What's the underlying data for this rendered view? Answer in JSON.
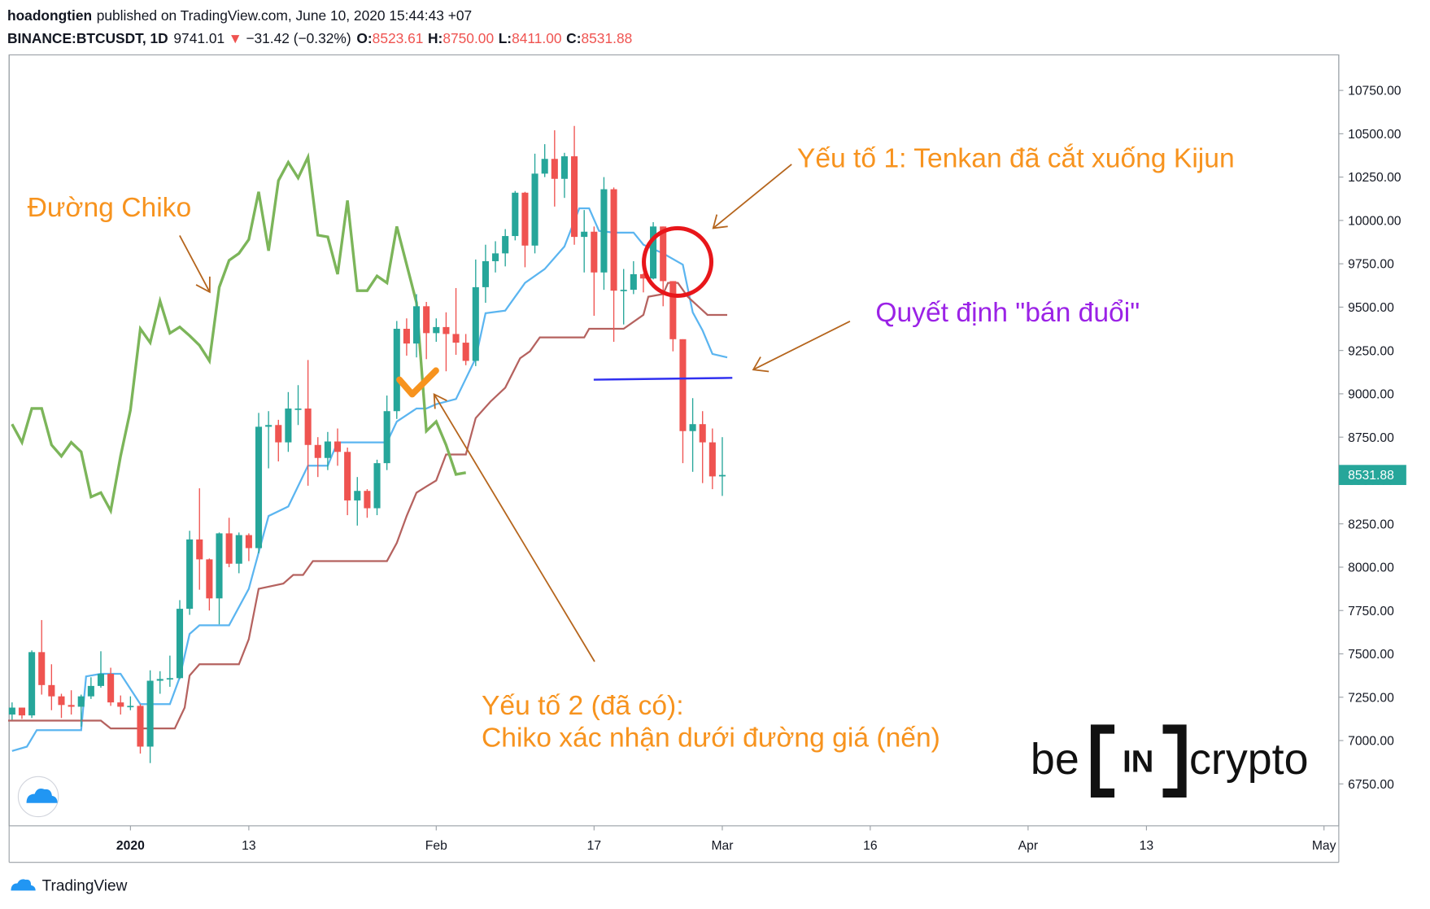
{
  "header": {
    "author": "hoadongtien",
    "published": "published on TradingView.com, June 10, 2020 15:44:43 +07",
    "symbol": "BINANCE:BTCUSDT, 1D",
    "price": "9741.01",
    "change_arrow": "▼",
    "change": "−31.42 (−0.32%)",
    "ohlc": [
      {
        "label": "O:",
        "value": "8523.61"
      },
      {
        "label": "H:",
        "value": "8750.00"
      },
      {
        "label": "L:",
        "value": "8411.00"
      },
      {
        "label": "C:",
        "value": "8531.88"
      }
    ]
  },
  "chart_data": {
    "type": "candlestick",
    "up_color": "#26a69a",
    "down_color": "#ef5350",
    "x": [
      -12,
      -11,
      -10,
      -9,
      -8,
      -7,
      -6,
      -5,
      -4,
      -3,
      -2,
      -1,
      0,
      1,
      2,
      3,
      4,
      5,
      6,
      7,
      8,
      9,
      10,
      11,
      12,
      13,
      14,
      15,
      16,
      17,
      18,
      19,
      20,
      21,
      22,
      23,
      24,
      25,
      26,
      27,
      28,
      29,
      30,
      31,
      32,
      33,
      34,
      35,
      36,
      37,
      38,
      39,
      40,
      41,
      42,
      43,
      44,
      45,
      46,
      47,
      48,
      49,
      50,
      51,
      52,
      53,
      54,
      55,
      56,
      57,
      58,
      59,
      60
    ],
    "open": [
      7150,
      7190,
      7145,
      7510,
      7320,
      7255,
      7205,
      7195,
      7255,
      7315,
      7385,
      7220,
      7195,
      7200,
      6965,
      7345,
      7355,
      7360,
      7760,
      8160,
      8045,
      7820,
      8195,
      8020,
      8185,
      8110,
      8810,
      8820,
      8720,
      8915,
      8915,
      8705,
      8630,
      8725,
      8665,
      8385,
      8440,
      8340,
      8600,
      8900,
      9375,
      9290,
      9505,
      9350,
      9385,
      9345,
      9295,
      9190,
      9615,
      9765,
      9810,
      9910,
      10160,
      9855,
      10270,
      10355,
      10240,
      10370,
      9905,
      9935,
      9700,
      10180,
      9595,
      9600,
      9690,
      9665,
      9965,
      9650,
      9315,
      8785,
      8825,
      8720,
      8523.61
    ],
    "high": [
      7220,
      7190,
      7520,
      7695,
      7440,
      7270,
      7290,
      7265,
      7365,
      7515,
      7420,
      7260,
      7255,
      7210,
      7405,
      7400,
      7490,
      7810,
      8210,
      8455,
      8050,
      8200,
      8285,
      8200,
      8195,
      8890,
      8900,
      8850,
      9010,
      9050,
      9195,
      8750,
      8780,
      8800,
      8690,
      8520,
      8450,
      8620,
      8990,
      9420,
      9435,
      9575,
      9530,
      9435,
      9470,
      9610,
      9345,
      9775,
      9860,
      9880,
      9950,
      10170,
      10165,
      10385,
      10440,
      10520,
      10390,
      10545,
      10060,
      9965,
      10250,
      10190,
      9720,
      9765,
      9695,
      9990,
      9965,
      9650,
      9315,
      8975,
      8900,
      8800,
      8750
    ],
    "low": [
      7120,
      7125,
      7130,
      7265,
      7175,
      7130,
      7150,
      7080,
      7240,
      7305,
      7200,
      7150,
      7175,
      6925,
      6870,
      7270,
      7310,
      7355,
      7725,
      7870,
      7750,
      7670,
      8000,
      7965,
      8035,
      8080,
      8570,
      8610,
      8665,
      8820,
      8470,
      8520,
      8560,
      8585,
      8300,
      8240,
      8285,
      8300,
      8560,
      8855,
      9220,
      9210,
      9200,
      9300,
      9130,
      9225,
      9165,
      9160,
      9525,
      9700,
      9735,
      9885,
      9730,
      9810,
      10250,
      10080,
      10130,
      9860,
      9700,
      9450,
      9600,
      9300,
      9400,
      9575,
      9585,
      9660,
      9505,
      9245,
      8600,
      8550,
      8485,
      8450,
      8411
    ],
    "close": [
      7190,
      7145,
      7510,
      7320,
      7255,
      7205,
      7195,
      7255,
      7315,
      7385,
      7220,
      7195,
      7200,
      6965,
      7345,
      7355,
      7360,
      7760,
      8160,
      8045,
      7820,
      8195,
      8020,
      8185,
      8110,
      8810,
      8820,
      8720,
      8915,
      8915,
      8705,
      8630,
      8725,
      8665,
      8385,
      8440,
      8340,
      8600,
      8900,
      9375,
      9290,
      9505,
      9350,
      9385,
      9345,
      9295,
      9190,
      9615,
      9765,
      9810,
      9910,
      10160,
      9855,
      10270,
      10355,
      10240,
      10370,
      9905,
      9935,
      9700,
      10180,
      9595,
      9600,
      9690,
      9665,
      9965,
      9650,
      9315,
      8785,
      8825,
      8720,
      8523.61,
      8531.88
    ],
    "lines": [
      {
        "color": "#5bb5f0",
        "x": [
          -12,
          -10.5,
          -9.5,
          -5,
          -4.5,
          -3,
          -1,
          1,
          4,
          5,
          6,
          7,
          10,
          12,
          14,
          16,
          18,
          20,
          20.5,
          21,
          26,
          27,
          29,
          30,
          31,
          33,
          35,
          36,
          38,
          40,
          42,
          44,
          45.5,
          46.5,
          47.5,
          49,
          51,
          52,
          54,
          56,
          57,
          58,
          59,
          60.5
        ],
        "values": [
          6940,
          6965,
          7060,
          7060,
          7370,
          7385,
          7385,
          7210,
          7210,
          7365,
          7615,
          7665,
          7665,
          7875,
          8295,
          8350,
          8585,
          8585,
          8655,
          8720,
          8720,
          8840,
          8915,
          8915,
          8940,
          8970,
          9205,
          9465,
          9480,
          9640,
          9720,
          9850,
          10070,
          10070,
          9940,
          9930,
          9930,
          9860,
          9810,
          9745,
          9470,
          9365,
          9230,
          9210
        ]
      },
      {
        "color": "#b5625f",
        "x": [
          -12.4,
          -3,
          -2,
          4.5,
          5.5,
          6,
          7,
          11,
          12,
          13,
          15.5,
          16.5,
          17.5,
          18.5,
          26,
          27,
          28,
          29,
          30,
          31,
          32,
          34,
          35,
          36.5,
          38,
          39.5,
          40.5,
          41.5,
          46,
          46.5,
          50,
          52,
          52.5,
          54,
          54.5,
          55.5,
          56.5,
          58.5,
          60.5
        ],
        "values": [
          7115,
          7115,
          7070,
          7070,
          7190,
          7375,
          7440,
          7440,
          7585,
          7875,
          7905,
          7955,
          7955,
          8035,
          8035,
          8140,
          8295,
          8430,
          8465,
          8500,
          8650,
          8650,
          8860,
          8955,
          9035,
          9205,
          9245,
          9325,
          9325,
          9375,
          9375,
          9455,
          9560,
          9575,
          9640,
          9640,
          9560,
          9455,
          9455
        ]
      },
      {
        "color": "#7cb55a",
        "x": [
          -12,
          -11,
          -10,
          -9,
          -8,
          -7,
          -6,
          -5,
          -4,
          -3,
          -2,
          -1,
          0,
          1,
          2,
          3,
          4,
          5,
          6,
          7,
          8,
          9,
          10,
          11,
          12,
          13,
          14,
          15,
          16,
          17,
          18,
          19,
          20,
          21,
          22,
          23,
          24,
          25,
          26,
          27,
          28,
          29,
          30,
          31,
          32,
          33,
          34
        ],
        "values": [
          8825,
          8720,
          8915,
          8915,
          8705,
          8640,
          8720,
          8665,
          8405,
          8430,
          8325,
          8640,
          8905,
          9375,
          9295,
          9535,
          9350,
          9385,
          9335,
          9280,
          9190,
          9615,
          9770,
          9810,
          9890,
          10165,
          9825,
          10230,
          10335,
          10245,
          10365,
          9915,
          9905,
          9690,
          10115,
          9595,
          9595,
          9680,
          9640,
          9965,
          9745,
          9525,
          8785,
          8840,
          8705,
          8535,
          8545
        ]
      }
    ],
    "last_price": {
      "value": 8531.88,
      "label": "8531.88"
    },
    "xlim": [
      -12.3,
      122.5
    ],
    "xticks": [
      {
        "value": 0,
        "label": "2020"
      },
      {
        "value": 12,
        "label": "13"
      },
      {
        "value": 31,
        "label": "Feb"
      },
      {
        "value": 47,
        "label": "17"
      },
      {
        "value": 60,
        "label": "Mar"
      },
      {
        "value": 75,
        "label": "16"
      },
      {
        "value": 91,
        "label": "Apr"
      },
      {
        "value": 103,
        "label": "13"
      },
      {
        "value": 121,
        "label": "May"
      }
    ],
    "ylim": [
      6508,
      10955
    ],
    "yticks": [
      {
        "value": 6750,
        "label": "6750.00"
      },
      {
        "value": 7000,
        "label": "7000.00"
      },
      {
        "value": 7250,
        "label": "7250.00"
      },
      {
        "value": 7500,
        "label": "7500.00"
      },
      {
        "value": 7750,
        "label": "7750.00"
      },
      {
        "value": 8000,
        "label": "8000.00"
      },
      {
        "value": 8250,
        "label": "8250.00"
      },
      {
        "value": 8500,
        "label": "8500.00"
      },
      {
        "value": 8750,
        "label": "8750.00"
      },
      {
        "value": 9000,
        "label": "9000.00"
      },
      {
        "value": 9250,
        "label": "9250.00"
      },
      {
        "value": 9500,
        "label": "9500.00"
      },
      {
        "value": 9750,
        "label": "9750.00"
      },
      {
        "value": 10000,
        "label": "10000.00"
      },
      {
        "value": 10250,
        "label": "10250.00"
      },
      {
        "value": 10500,
        "label": "10500.00"
      },
      {
        "value": 10750,
        "label": "10750.00"
      }
    ]
  },
  "annotations": [
    {
      "text": "Đường Chiko",
      "color": "#f7931e"
    },
    {
      "text": "Yếu tố 1: Tenkan đã cắt xuống Kijun",
      "color": "#f7931e"
    },
    {
      "text": "Quyết định \"bán đuổi\"",
      "color": "#9b22e6"
    },
    {
      "text": "Yếu tố 2 (đã có):",
      "color": "#f7931e"
    },
    {
      "text": "Chiko xác nhận dưới đường giá (nến)",
      "color": "#f7931e"
    }
  ],
  "watermark": {
    "left": "be",
    "middle": "IN",
    "right": "crypto"
  },
  "footer": "TradingView"
}
